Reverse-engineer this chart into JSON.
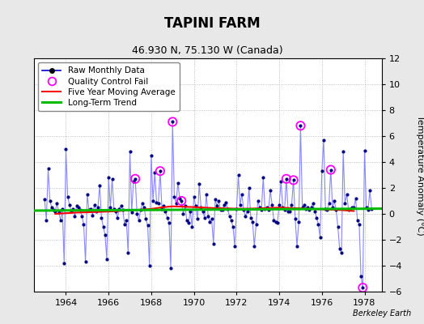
{
  "title": "TAPINI FARM",
  "subtitle": "46.930 N, 75.130 W (Canada)",
  "ylabel": "Temperature Anomaly (°C)",
  "credit": "Berkeley Earth",
  "ylim": [
    -6,
    12
  ],
  "yticks": [
    -6,
    -4,
    -2,
    0,
    2,
    4,
    6,
    8,
    10,
    12
  ],
  "xlim": [
    1962.5,
    1978.8
  ],
  "xticks": [
    1964,
    1966,
    1968,
    1970,
    1972,
    1974,
    1976,
    1978
  ],
  "legend": {
    "raw": "Raw Monthly Data",
    "qc": "Quality Control Fail",
    "ma": "Five Year Moving Average",
    "trend": "Long-Term Trend"
  },
  "colors": {
    "raw_line": "#8888ff",
    "raw_dot": "#000080",
    "qc": "#ff00ff",
    "ma": "#ff0000",
    "trend": "#00bb00",
    "background": "#e8e8e8",
    "plot_bg": "#ffffff",
    "grid": "#b0b0b0"
  },
  "raw_data": [
    [
      1963.0,
      1.1
    ],
    [
      1963.083,
      -0.5
    ],
    [
      1963.167,
      3.5
    ],
    [
      1963.25,
      1.0
    ],
    [
      1963.333,
      0.5
    ],
    [
      1963.417,
      0.3
    ],
    [
      1963.5,
      0.2
    ],
    [
      1963.583,
      0.8
    ],
    [
      1963.667,
      0.1
    ],
    [
      1963.75,
      -0.5
    ],
    [
      1963.833,
      0.4
    ],
    [
      1963.917,
      -3.8
    ],
    [
      1964.0,
      5.0
    ],
    [
      1964.083,
      1.3
    ],
    [
      1964.167,
      0.7
    ],
    [
      1964.25,
      0.2
    ],
    [
      1964.333,
      0.4
    ],
    [
      1964.417,
      -0.2
    ],
    [
      1964.5,
      0.6
    ],
    [
      1964.583,
      0.5
    ],
    [
      1964.667,
      0.3
    ],
    [
      1964.75,
      -0.2
    ],
    [
      1964.833,
      -0.8
    ],
    [
      1964.917,
      -3.7
    ],
    [
      1965.0,
      1.5
    ],
    [
      1965.083,
      0.3
    ],
    [
      1965.167,
      0.4
    ],
    [
      1965.25,
      -0.1
    ],
    [
      1965.333,
      0.7
    ],
    [
      1965.417,
      0.2
    ],
    [
      1965.5,
      0.5
    ],
    [
      1965.583,
      2.2
    ],
    [
      1965.667,
      -0.3
    ],
    [
      1965.75,
      -1.0
    ],
    [
      1965.833,
      -1.6
    ],
    [
      1965.917,
      -3.5
    ],
    [
      1966.0,
      2.8
    ],
    [
      1966.083,
      0.5
    ],
    [
      1966.167,
      2.7
    ],
    [
      1966.25,
      0.4
    ],
    [
      1966.333,
      0.2
    ],
    [
      1966.417,
      -0.3
    ],
    [
      1966.5,
      0.4
    ],
    [
      1966.583,
      0.6
    ],
    [
      1966.667,
      0.3
    ],
    [
      1966.75,
      -0.8
    ],
    [
      1966.833,
      -0.5
    ],
    [
      1966.917,
      -3.0
    ],
    [
      1967.0,
      4.8
    ],
    [
      1967.083,
      0.1
    ],
    [
      1967.167,
      2.5
    ],
    [
      1967.25,
      2.7
    ],
    [
      1967.333,
      0.0
    ],
    [
      1967.417,
      -0.5
    ],
    [
      1967.5,
      0.3
    ],
    [
      1967.583,
      0.8
    ],
    [
      1967.667,
      0.5
    ],
    [
      1967.75,
      -0.4
    ],
    [
      1967.833,
      -0.9
    ],
    [
      1967.917,
      -4.0
    ],
    [
      1968.0,
      4.5
    ],
    [
      1968.083,
      1.0
    ],
    [
      1968.167,
      3.2
    ],
    [
      1968.25,
      0.9
    ],
    [
      1968.333,
      0.8
    ],
    [
      1968.417,
      3.3
    ],
    [
      1968.5,
      0.4
    ],
    [
      1968.583,
      0.6
    ],
    [
      1968.667,
      0.2
    ],
    [
      1968.75,
      -0.3
    ],
    [
      1968.833,
      -0.7
    ],
    [
      1968.917,
      -4.2
    ],
    [
      1969.0,
      7.1
    ],
    [
      1969.083,
      1.3
    ],
    [
      1969.167,
      0.8
    ],
    [
      1969.25,
      2.4
    ],
    [
      1969.333,
      1.2
    ],
    [
      1969.417,
      1.0
    ],
    [
      1969.5,
      0.0
    ],
    [
      1969.583,
      0.6
    ],
    [
      1969.667,
      -0.5
    ],
    [
      1969.75,
      -0.7
    ],
    [
      1969.833,
      0.2
    ],
    [
      1969.917,
      -1.0
    ],
    [
      1970.0,
      1.3
    ],
    [
      1970.083,
      0.6
    ],
    [
      1970.167,
      -0.4
    ],
    [
      1970.25,
      2.3
    ],
    [
      1970.333,
      0.5
    ],
    [
      1970.417,
      0.2
    ],
    [
      1970.5,
      -0.3
    ],
    [
      1970.583,
      1.5
    ],
    [
      1970.667,
      -0.2
    ],
    [
      1970.75,
      -0.6
    ],
    [
      1970.833,
      -0.4
    ],
    [
      1970.917,
      -2.3
    ],
    [
      1971.0,
      1.1
    ],
    [
      1971.083,
      0.6
    ],
    [
      1971.167,
      1.0
    ],
    [
      1971.25,
      0.3
    ],
    [
      1971.333,
      0.3
    ],
    [
      1971.417,
      0.7
    ],
    [
      1971.5,
      0.9
    ],
    [
      1971.583,
      0.4
    ],
    [
      1971.667,
      -0.2
    ],
    [
      1971.75,
      -0.5
    ],
    [
      1971.833,
      -1.0
    ],
    [
      1971.917,
      -2.5
    ],
    [
      1972.0,
      0.4
    ],
    [
      1972.083,
      3.0
    ],
    [
      1972.167,
      0.7
    ],
    [
      1972.25,
      1.5
    ],
    [
      1972.333,
      0.3
    ],
    [
      1972.417,
      -0.2
    ],
    [
      1972.5,
      0.2
    ],
    [
      1972.583,
      2.0
    ],
    [
      1972.667,
      -0.3
    ],
    [
      1972.75,
      -0.6
    ],
    [
      1972.833,
      -2.5
    ],
    [
      1972.917,
      -0.8
    ],
    [
      1973.0,
      1.0
    ],
    [
      1973.083,
      0.5
    ],
    [
      1973.167,
      0.3
    ],
    [
      1973.25,
      2.8
    ],
    [
      1973.333,
      0.4
    ],
    [
      1973.417,
      0.5
    ],
    [
      1973.5,
      0.3
    ],
    [
      1973.583,
      1.8
    ],
    [
      1973.667,
      0.7
    ],
    [
      1973.75,
      -0.5
    ],
    [
      1973.833,
      -0.6
    ],
    [
      1973.917,
      -0.7
    ],
    [
      1974.0,
      0.7
    ],
    [
      1974.083,
      2.5
    ],
    [
      1974.167,
      0.5
    ],
    [
      1974.25,
      0.3
    ],
    [
      1974.333,
      2.7
    ],
    [
      1974.417,
      0.2
    ],
    [
      1974.5,
      0.2
    ],
    [
      1974.583,
      0.7
    ],
    [
      1974.667,
      2.6
    ],
    [
      1974.75,
      -0.4
    ],
    [
      1974.833,
      -2.5
    ],
    [
      1974.917,
      -0.6
    ],
    [
      1975.0,
      6.8
    ],
    [
      1975.083,
      0.5
    ],
    [
      1975.167,
      0.7
    ],
    [
      1975.25,
      0.4
    ],
    [
      1975.333,
      0.5
    ],
    [
      1975.417,
      0.3
    ],
    [
      1975.5,
      0.5
    ],
    [
      1975.583,
      0.8
    ],
    [
      1975.667,
      0.2
    ],
    [
      1975.75,
      -0.3
    ],
    [
      1975.833,
      -0.8
    ],
    [
      1975.917,
      -1.8
    ],
    [
      1976.0,
      3.3
    ],
    [
      1976.083,
      5.7
    ],
    [
      1976.167,
      0.4
    ],
    [
      1976.25,
      0.3
    ],
    [
      1976.333,
      0.8
    ],
    [
      1976.417,
      3.4
    ],
    [
      1976.5,
      0.5
    ],
    [
      1976.583,
      1.0
    ],
    [
      1976.667,
      0.3
    ],
    [
      1976.75,
      -1.0
    ],
    [
      1976.833,
      -2.7
    ],
    [
      1976.917,
      -3.0
    ],
    [
      1977.0,
      4.8
    ],
    [
      1977.083,
      0.8
    ],
    [
      1977.167,
      1.5
    ],
    [
      1977.25,
      0.3
    ],
    [
      1977.333,
      0.4
    ],
    [
      1977.417,
      0.5
    ],
    [
      1977.5,
      0.5
    ],
    [
      1977.583,
      1.2
    ],
    [
      1977.667,
      -0.5
    ],
    [
      1977.75,
      -0.8
    ],
    [
      1977.833,
      -4.8
    ],
    [
      1977.917,
      -5.7
    ],
    [
      1978.0,
      4.9
    ],
    [
      1978.083,
      0.5
    ],
    [
      1978.167,
      0.3
    ],
    [
      1978.25,
      1.8
    ],
    [
      1978.333,
      0.4
    ]
  ],
  "qc_fail_points": [
    [
      1967.25,
      2.7
    ],
    [
      1968.417,
      3.3
    ],
    [
      1969.0,
      7.1
    ],
    [
      1969.417,
      1.0
    ],
    [
      1974.333,
      2.7
    ],
    [
      1974.667,
      2.6
    ],
    [
      1975.0,
      6.8
    ],
    [
      1976.417,
      3.4
    ],
    [
      1977.917,
      -5.7
    ]
  ],
  "moving_avg_x": [
    1963.5,
    1964.0,
    1964.5,
    1965.0,
    1965.5,
    1966.0,
    1966.5,
    1967.0,
    1967.5,
    1968.0,
    1968.5,
    1969.0,
    1969.5,
    1970.0,
    1970.5,
    1971.0,
    1971.5,
    1972.0,
    1972.5,
    1973.0,
    1973.5,
    1974.0,
    1974.5,
    1975.0,
    1975.5,
    1976.0,
    1976.5,
    1977.0,
    1977.5
  ],
  "moving_avg_y": [
    0.0,
    0.05,
    0.1,
    0.12,
    0.15,
    0.18,
    0.22,
    0.28,
    0.32,
    0.38,
    0.5,
    0.58,
    0.55,
    0.52,
    0.48,
    0.44,
    0.42,
    0.4,
    0.4,
    0.42,
    0.45,
    0.48,
    0.45,
    0.42,
    0.38,
    0.35,
    0.32,
    0.28,
    0.22
  ],
  "trend_x": [
    1962.5,
    1978.8
  ],
  "trend_y": [
    0.25,
    0.4
  ]
}
